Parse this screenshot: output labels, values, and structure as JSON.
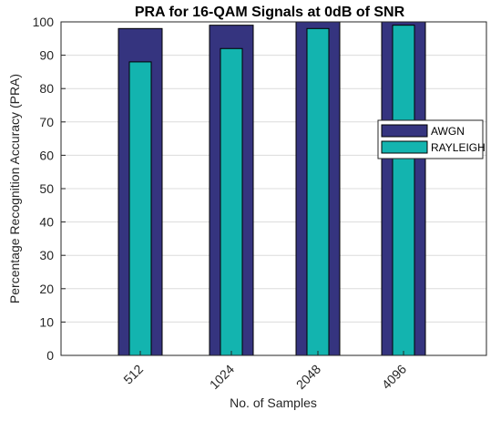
{
  "chart_data": {
    "type": "bar",
    "title": "PRA for 16-QAM Signals at 0dB of SNR",
    "xlabel": "No. of Samples",
    "ylabel": "Percentage Recognition Accuracy (PRA)",
    "categories": [
      "512",
      "1024",
      "2048",
      "4096"
    ],
    "ylim": [
      0,
      100
    ],
    "yticks": [
      0,
      10,
      20,
      30,
      40,
      50,
      60,
      70,
      80,
      90,
      100
    ],
    "grid": true,
    "legend_position": "right",
    "bar_style": "overlaid (narrower bar drawn inside wider bar)",
    "series": [
      {
        "name": "AWGN",
        "values": [
          98,
          99,
          100,
          100
        ],
        "color": "#35347f"
      },
      {
        "name": "RAYLEIGH",
        "values": [
          88,
          92,
          98,
          99
        ],
        "color": "#13b4af"
      }
    ]
  }
}
